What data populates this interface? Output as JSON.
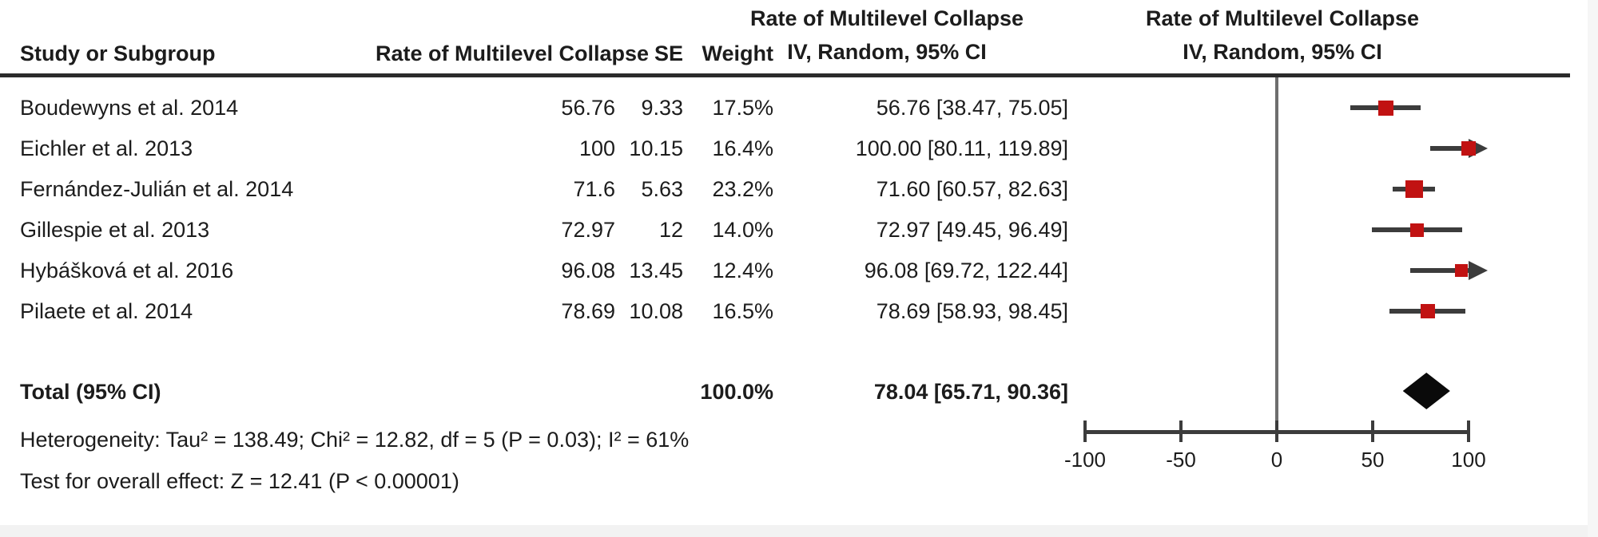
{
  "header": {
    "study": "Study or Subgroup",
    "rate": "Rate of Multilevel Collapse",
    "se": "SE",
    "weight": "Weight",
    "effect_line1": "Rate of Multilevel Collapse",
    "effect_line2": "IV, Random, 95% CI",
    "plot_line1": "Rate of Multilevel Collapse",
    "plot_line2": "IV, Random, 95% CI"
  },
  "chart_data": {
    "type": "forest",
    "outcome": "Rate of Multilevel Collapse",
    "model": "IV, Random, 95% CI",
    "axis": {
      "min": -100,
      "max": 100,
      "ticks": [
        -100,
        -50,
        0,
        50,
        100
      ]
    },
    "studies": [
      {
        "name": "Boudewyns et al. 2014",
        "rate": "56.76",
        "se": "9.33",
        "weight": "17.5%",
        "weight_pct": 17.5,
        "ci_text": "56.76 [38.47, 75.05]",
        "est": 56.76,
        "lo": 38.47,
        "hi": 75.05
      },
      {
        "name": "Eichler et al. 2013",
        "rate": "100",
        "se": "10.15",
        "weight": "16.4%",
        "weight_pct": 16.4,
        "ci_text": "100.00 [80.11, 119.89]",
        "est": 100.0,
        "lo": 80.11,
        "hi": 119.89
      },
      {
        "name": "Fernández-Julián et al. 2014",
        "rate": "71.6",
        "se": "5.63",
        "weight": "23.2%",
        "weight_pct": 23.2,
        "ci_text": "71.60 [60.57, 82.63]",
        "est": 71.6,
        "lo": 60.57,
        "hi": 82.63
      },
      {
        "name": "Gillespie et al. 2013",
        "rate": "72.97",
        "se": "12",
        "weight": "14.0%",
        "weight_pct": 14.0,
        "ci_text": "72.97 [49.45, 96.49]",
        "est": 72.97,
        "lo": 49.45,
        "hi": 96.49
      },
      {
        "name": "Hybášková et al. 2016",
        "rate": "96.08",
        "se": "13.45",
        "weight": "12.4%",
        "weight_pct": 12.4,
        "ci_text": "96.08 [69.72, 122.44]",
        "est": 96.08,
        "lo": 69.72,
        "hi": 122.44
      },
      {
        "name": "Pilaete et al. 2014",
        "rate": "78.69",
        "se": "10.08",
        "weight": "16.5%",
        "weight_pct": 16.5,
        "ci_text": "78.69 [58.93, 98.45]",
        "est": 78.69,
        "lo": 58.93,
        "hi": 98.45
      }
    ],
    "total": {
      "label": "Total (95% CI)",
      "weight": "100.0%",
      "weight_pct": 100.0,
      "ci_text": "78.04 [65.71, 90.36]",
      "est": 78.04,
      "lo": 65.71,
      "hi": 90.36
    },
    "footnotes": {
      "heterogeneity": "Heterogeneity: Tau² = 138.49; Chi² = 12.82, df = 5 (P = 0.03); I² = 61%",
      "overall_effect": "Test for overall effect: Z = 12.41 (P < 0.00001)"
    }
  },
  "colors": {
    "marker_red": "#c11212",
    "diamond_black": "#0a0a0a",
    "ci_line": "#3c3c3c",
    "zero_line": "#6e6e6e",
    "rule": "#2b2b2b"
  }
}
